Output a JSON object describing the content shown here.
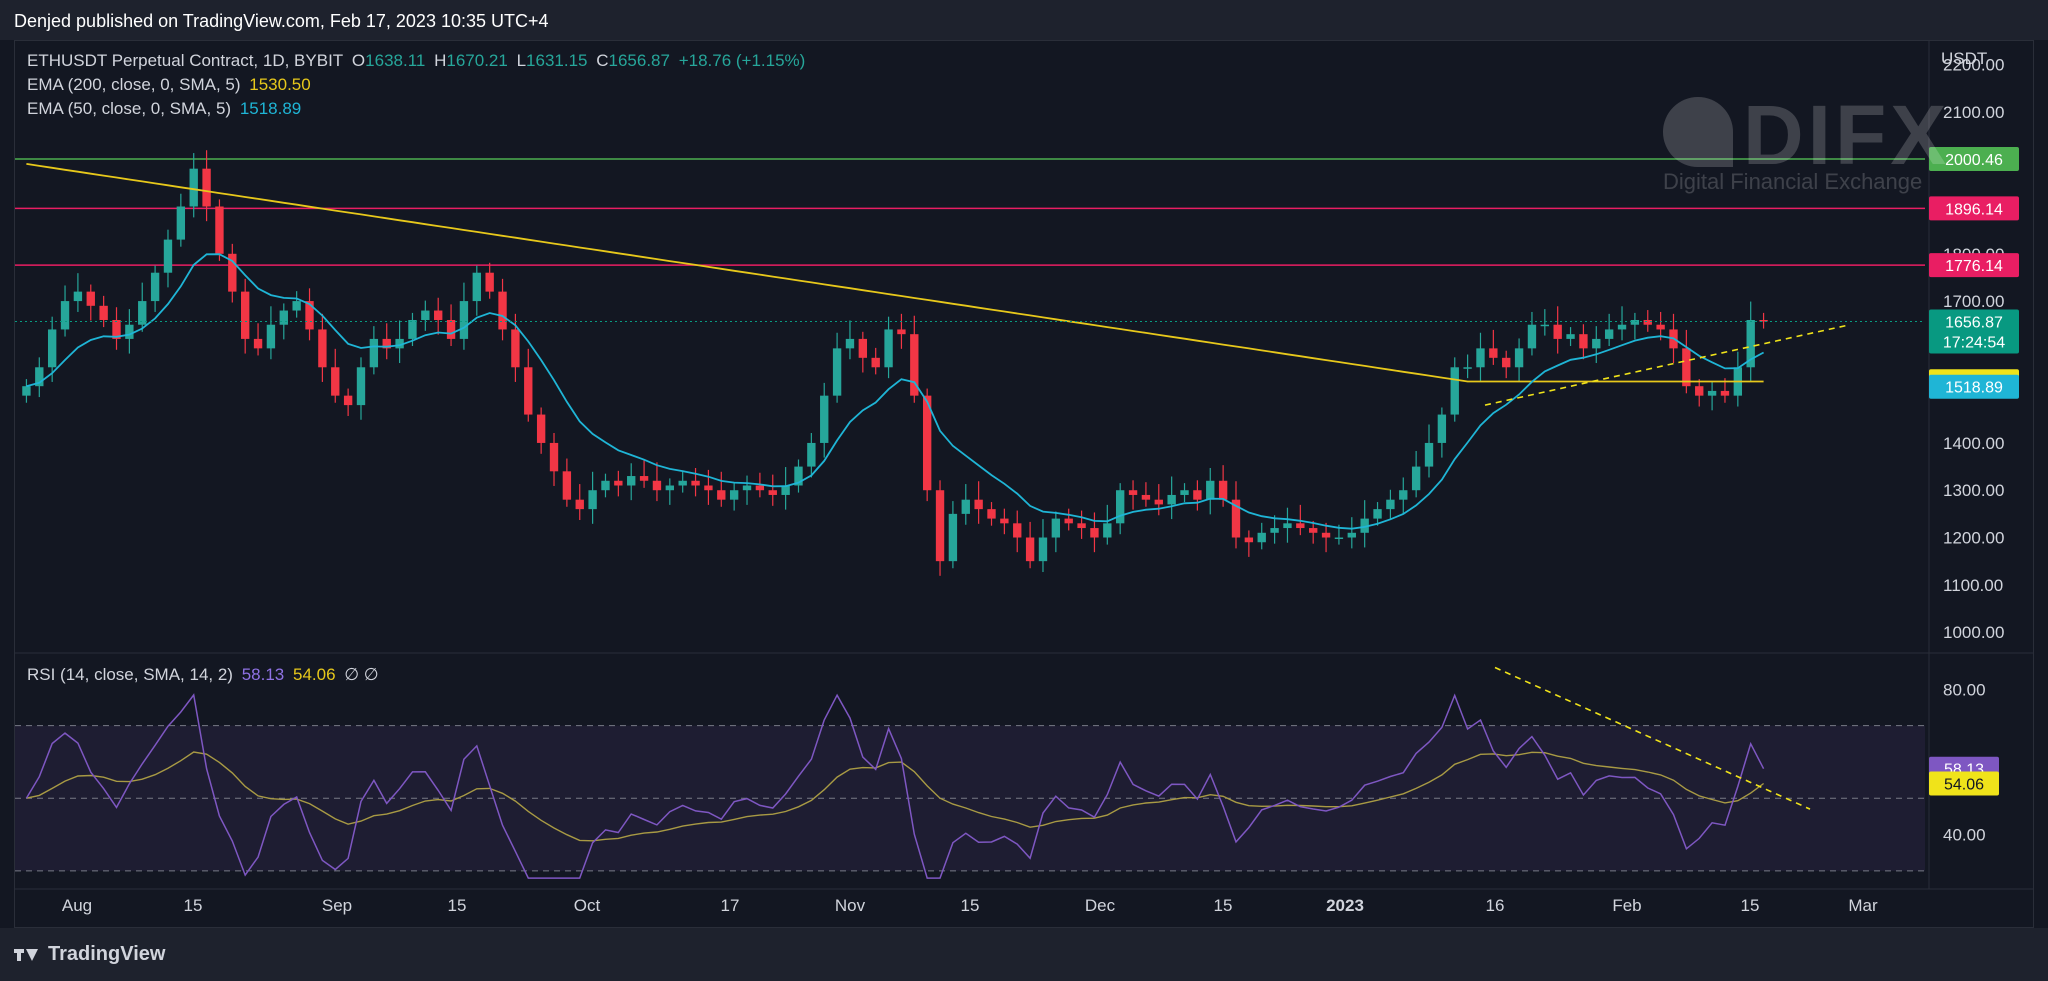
{
  "header": {
    "published": "Denjed published on TradingView.com, Feb 17, 2023 10:35 UTC+4"
  },
  "footer": {
    "brand": "TradingView"
  },
  "watermark": {
    "name": "DIFX",
    "tagline": "Digital Financial Exchange"
  },
  "legend": {
    "symbol": "ETHUSDT Perpetual Contract, 1D, BYBIT",
    "o_label": "O",
    "o_value": "1638.11",
    "h_label": "H",
    "h_value": "1670.21",
    "l_label": "L",
    "l_value": "1631.15",
    "c_label": "C",
    "c_value": "1656.87",
    "change": "+18.76 (+1.15%)",
    "ema200_label": "EMA (200, close, 0, SMA, 5)",
    "ema200_value": "1530.50",
    "ema50_label": "EMA (50, close, 0, SMA, 5)",
    "ema50_value": "1518.89",
    "rsi_label": "RSI (14, close, SMA, 14, 2)",
    "rsi_value": "58.13",
    "rsi_ma_value": "54.06",
    "rsi_icons": "∅ ∅"
  },
  "chart_data": [
    {
      "type": "candlestick",
      "title": "ETHUSDT Perpetual Contract, 1D, BYBIT",
      "ylabel": "USDT",
      "ylim": [
        960,
        2250
      ],
      "y_ticks": [
        "2200.00",
        "2100.00",
        "1800.00",
        "1700.00",
        "1400.00",
        "1300.00",
        "1200.00",
        "1100.00",
        "1000.00"
      ],
      "x_ticks": [
        "Aug",
        "15",
        "Sep",
        "15",
        "Oct",
        "17",
        "Nov",
        "15",
        "Dec",
        "15",
        "2023",
        "16",
        "Feb",
        "15",
        "Mar"
      ],
      "close_path": [
        1520,
        1560,
        1640,
        1700,
        1720,
        1690,
        1660,
        1620,
        1650,
        1700,
        1760,
        1830,
        1900,
        1980,
        1900,
        1800,
        1720,
        1620,
        1600,
        1650,
        1680,
        1700,
        1640,
        1560,
        1500,
        1480,
        1560,
        1620,
        1600,
        1620,
        1660,
        1680,
        1660,
        1620,
        1700,
        1760,
        1720,
        1640,
        1560,
        1460,
        1400,
        1340,
        1280,
        1260,
        1300,
        1320,
        1310,
        1330,
        1320,
        1300,
        1310,
        1320,
        1310,
        1300,
        1280,
        1300,
        1310,
        1300,
        1290,
        1310,
        1350,
        1400,
        1500,
        1600,
        1620,
        1580,
        1560,
        1640,
        1630,
        1500,
        1300,
        1150,
        1250,
        1280,
        1260,
        1240,
        1230,
        1200,
        1150,
        1200,
        1240,
        1230,
        1220,
        1200,
        1230,
        1300,
        1290,
        1280,
        1270,
        1290,
        1300,
        1280,
        1320,
        1280,
        1200,
        1190,
        1210,
        1220,
        1230,
        1220,
        1210,
        1200,
        1200,
        1210,
        1240,
        1260,
        1280,
        1300,
        1350,
        1400,
        1460,
        1560,
        1560,
        1600,
        1580,
        1560,
        1600,
        1650,
        1650,
        1620,
        1630,
        1600,
        1620,
        1640,
        1650,
        1660,
        1650,
        1640,
        1600,
        1520,
        1500,
        1510,
        1500,
        1560,
        1660,
        1656.87
      ],
      "horizontal_levels": [
        {
          "value": 2000.46,
          "label": "2000.46",
          "color": "#4caf50"
        },
        {
          "value": 1896.14,
          "label": "1896.14",
          "color": "#e91e63"
        },
        {
          "value": 1776.14,
          "label": "1776.14",
          "color": "#e91e63"
        }
      ],
      "price_labels": [
        {
          "value": 1656.87,
          "label": "1656.87",
          "sub": "17:24:54",
          "color": "#089981"
        },
        {
          "value": 1530.5,
          "label": "1530.50",
          "color": "#f0e31a"
        },
        {
          "value": 1518.89,
          "label": "1518.89",
          "color": "#1fb5d6"
        }
      ],
      "series": [
        {
          "name": "EMA (200, close, 0, SMA, 5)",
          "color": "#e7c81b"
        },
        {
          "name": "EMA (50, close, 0, SMA, 5)",
          "color": "#1fb5d6"
        }
      ]
    },
    {
      "type": "line",
      "title": "RSI (14, close, SMA, 14, 2)",
      "ylim": [
        25,
        90
      ],
      "y_ticks": [
        "80.00",
        "40.00"
      ],
      "bands": [
        70,
        50,
        30
      ],
      "series": [
        {
          "name": "RSI",
          "value": 58.13,
          "label": "58.13",
          "color": "#7e57c2"
        },
        {
          "name": "RSI MA",
          "value": 54.06,
          "label": "54.06",
          "color": "#f0e31a"
        }
      ]
    }
  ],
  "colors": {
    "up": "#26a69a",
    "down": "#f23645",
    "bg": "#131722",
    "grid": "#2a2e39"
  }
}
